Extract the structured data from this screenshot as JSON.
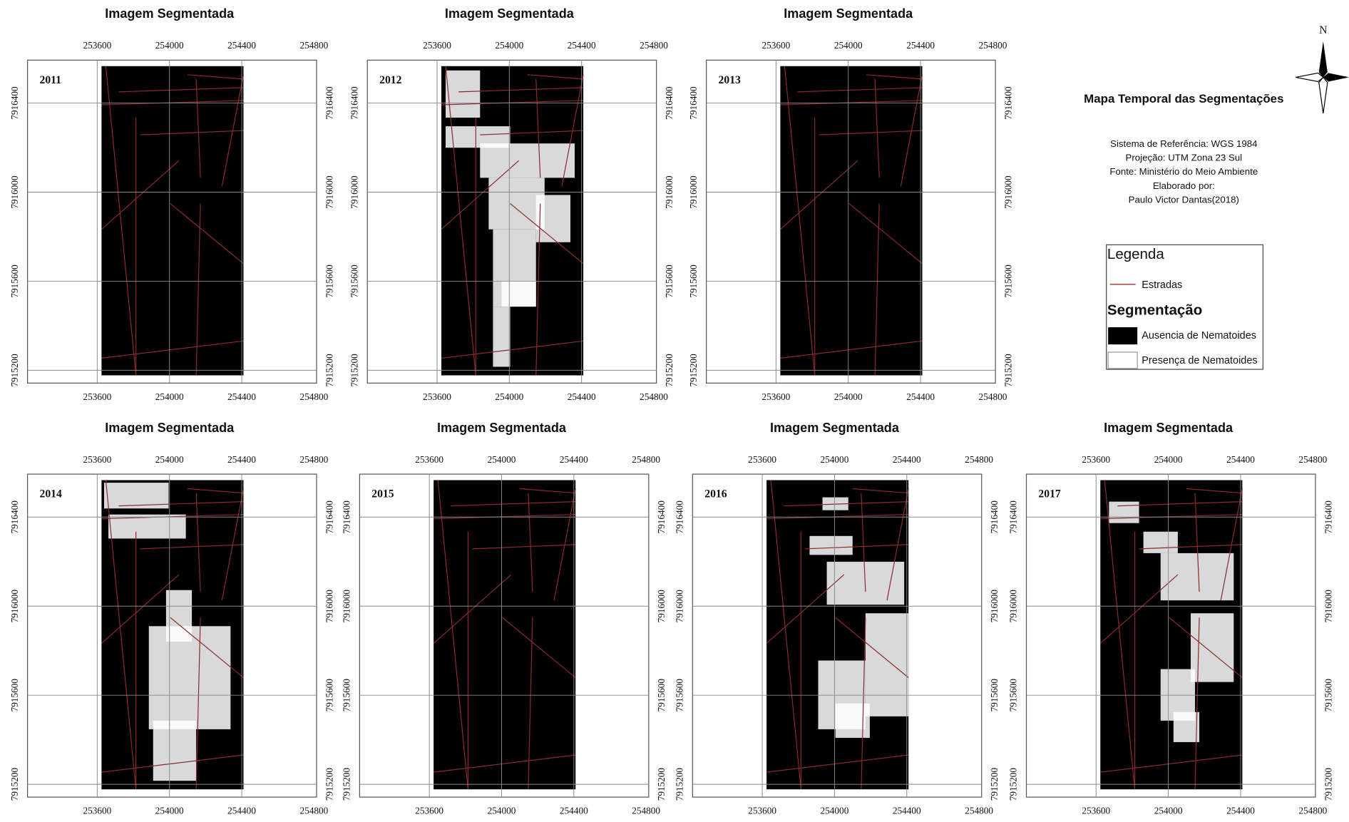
{
  "panels": [
    {
      "title": "Imagem Segmentada",
      "year": "2011"
    },
    {
      "title": "Imagem Segmentada",
      "year": "2012"
    },
    {
      "title": "Imagem Segmentada",
      "year": "2013"
    },
    {
      "title": "Imagem Segmentada",
      "year": "2014"
    },
    {
      "title": "Imagem Segmentada",
      "year": "2015"
    },
    {
      "title": "Imagem Segmentada",
      "year": "2016"
    },
    {
      "title": "Imagem Segmentada",
      "year": "2017"
    }
  ],
  "x_ticks": [
    253600,
    254000,
    254400,
    254800
  ],
  "y_ticks": [
    7915200,
    7915600,
    7916000,
    7916400
  ],
  "north": "N",
  "map_title": "Mapa Temporal das Segmentações",
  "info": [
    "Sistema de Referência: WGS 1984",
    "Projeção: UTM Zona 23 Sul",
    "Fonte: Ministério do Meio Ambiente",
    "Elaborado por:",
    "Paulo Victor Dantas(2018)"
  ],
  "legend": {
    "title": "Legenda",
    "roads": "Estradas",
    "subtitle": "Segmentação",
    "absence": "Ausencia de Nematoides",
    "presence": "Presença de Nematoides"
  }
}
